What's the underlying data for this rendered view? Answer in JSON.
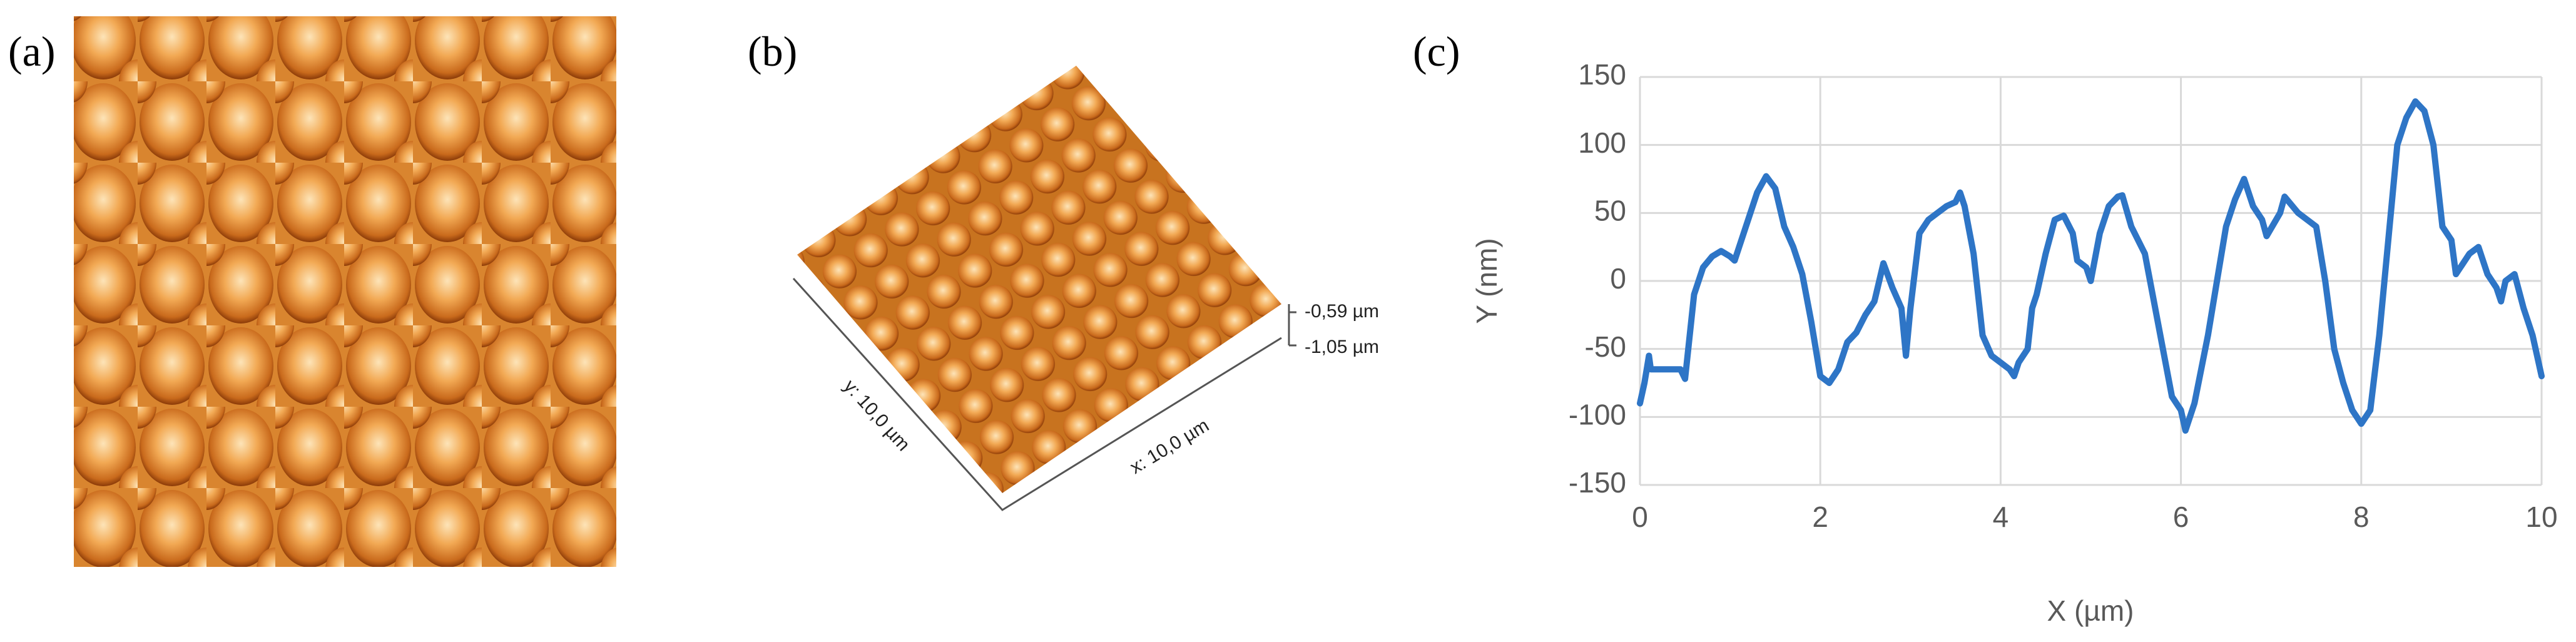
{
  "panels": {
    "a": {
      "label": "(a)"
    },
    "b": {
      "label": "(b)",
      "z_top": "-0,59 µm",
      "z_bottom": "-1,05 µm",
      "y_axis": "y: 10,0 µm",
      "x_axis": "x: 10,0 µm"
    },
    "c": {
      "label": "(c)"
    }
  },
  "chart_data": {
    "type": "line",
    "xlabel": "X (µm)",
    "ylabel": "Y (nm)",
    "color": "#2e75c6",
    "grid": true,
    "xlim": [
      0,
      10
    ],
    "ylim": [
      -150,
      150
    ],
    "xticks": [
      0,
      2,
      4,
      6,
      8,
      10
    ],
    "yticks": [
      -150,
      -100,
      -50,
      0,
      50,
      100,
      150
    ],
    "x": [
      0,
      0.05,
      0.1,
      0.12,
      0.3,
      0.45,
      0.5,
      0.6,
      0.7,
      0.8,
      0.9,
      1.0,
      1.05,
      1.1,
      1.2,
      1.3,
      1.4,
      1.5,
      1.6,
      1.7,
      1.8,
      1.9,
      2.0,
      2.1,
      2.2,
      2.3,
      2.4,
      2.5,
      2.6,
      2.7,
      2.8,
      2.9,
      2.95,
      3.0,
      3.1,
      3.2,
      3.3,
      3.4,
      3.5,
      3.55,
      3.6,
      3.7,
      3.8,
      3.9,
      4.0,
      4.1,
      4.15,
      4.2,
      4.3,
      4.35,
      4.4,
      4.5,
      4.6,
      4.7,
      4.8,
      4.85,
      4.95,
      5.0,
      5.1,
      5.2,
      5.3,
      5.35,
      5.45,
      5.6,
      5.7,
      5.8,
      5.9,
      6.0,
      6.05,
      6.15,
      6.3,
      6.4,
      6.5,
      6.6,
      6.7,
      6.8,
      6.9,
      6.95,
      7.1,
      7.15,
      7.3,
      7.5,
      7.6,
      7.7,
      7.8,
      7.9,
      8.0,
      8.1,
      8.2,
      8.3,
      8.4,
      8.5,
      8.6,
      8.7,
      8.8,
      8.9,
      9.0,
      9.05,
      9.2,
      9.3,
      9.4,
      9.5,
      9.55,
      9.6,
      9.7,
      9.8,
      9.9,
      10
    ],
    "values": [
      -90,
      -75,
      -55,
      -65,
      -65,
      -65,
      -72,
      -10,
      10,
      18,
      22,
      18,
      15,
      25,
      45,
      65,
      77,
      68,
      40,
      25,
      5,
      -30,
      -70,
      -75,
      -65,
      -45,
      -38,
      -25,
      -15,
      13,
      -5,
      -20,
      -55,
      -20,
      35,
      45,
      50,
      55,
      58,
      65,
      55,
      20,
      -40,
      -55,
      -60,
      -65,
      -70,
      -60,
      -50,
      -20,
      -10,
      20,
      45,
      48,
      35,
      15,
      10,
      0,
      35,
      55,
      62,
      63,
      40,
      20,
      -15,
      -50,
      -85,
      -95,
      -110,
      -90,
      -40,
      0,
      40,
      60,
      75,
      55,
      45,
      33,
      50,
      62,
      50,
      40,
      0,
      -50,
      -75,
      -95,
      -105,
      -95,
      -40,
      30,
      100,
      120,
      132,
      125,
      100,
      40,
      30,
      5,
      20,
      25,
      5,
      -5,
      -15,
      0,
      5,
      -20,
      -40,
      -70
    ]
  }
}
